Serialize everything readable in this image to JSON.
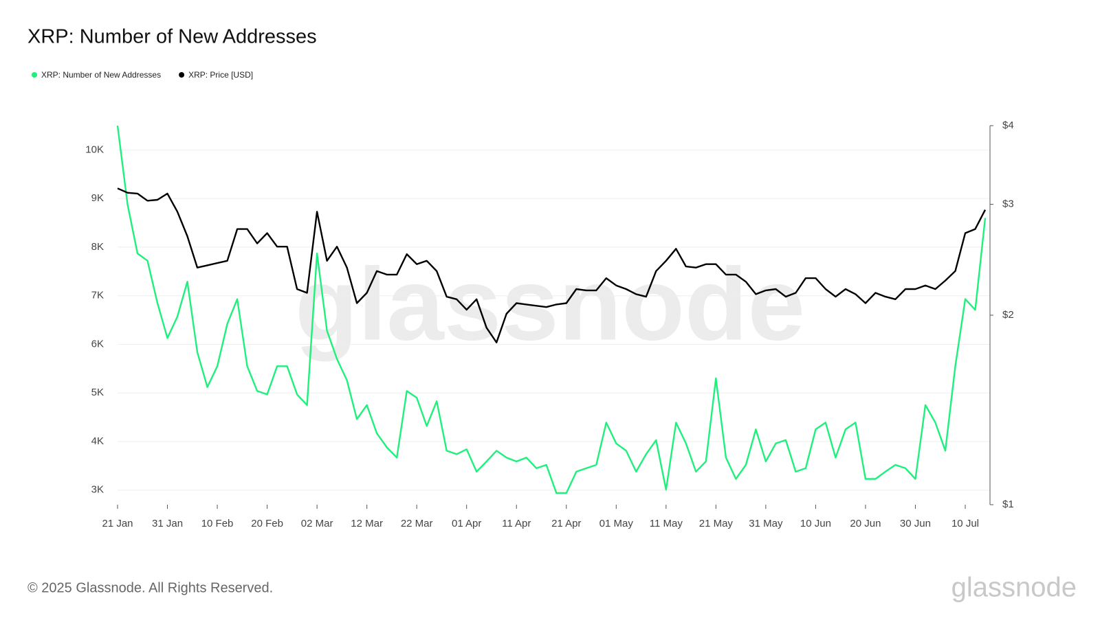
{
  "chart_data": {
    "type": "line",
    "title": "XRP: Number of New Addresses",
    "footer": "© 2025 Glassnode. All Rights Reserved.",
    "watermark": "glassnode",
    "categories": [
      "21 Jan",
      null,
      null,
      null,
      null,
      "31 Jan",
      null,
      null,
      null,
      null,
      "10 Feb",
      null,
      null,
      null,
      null,
      "20 Feb",
      null,
      null,
      null,
      null,
      "02 Mar",
      null,
      null,
      null,
      null,
      "12 Mar",
      null,
      null,
      null,
      null,
      "22 Mar",
      null,
      null,
      null,
      null,
      "01 Apr",
      null,
      null,
      null,
      null,
      "11 Apr",
      null,
      null,
      null,
      null,
      "21 Apr",
      null,
      null,
      null,
      null,
      "01 May",
      null,
      null,
      null,
      null,
      "11 May",
      null,
      null,
      null,
      null,
      "21 May",
      null,
      null,
      null,
      null,
      "31 May",
      null,
      null,
      null,
      null,
      "10 Jun",
      null,
      null,
      null,
      null,
      "20 Jun",
      null,
      null,
      null,
      null,
      "30 Jun",
      null,
      null,
      null,
      null,
      "10 Jul",
      null,
      null
    ],
    "series": [
      {
        "name": "XRP: Number of New Addresses",
        "color": "#1ef07c",
        "values": [
          10500,
          8880,
          7870,
          7720,
          6850,
          6130,
          6570,
          7290,
          5840,
          5120,
          5550,
          6420,
          6930,
          5550,
          5040,
          4970,
          5550,
          5550,
          4970,
          4750,
          7870,
          6280,
          5700,
          5260,
          4460,
          4750,
          4170,
          3880,
          3670,
          5040,
          4900,
          4320,
          4830,
          3810,
          3740,
          3840,
          3380,
          3590,
          3810,
          3670,
          3590,
          3670,
          3450,
          3520,
          2940,
          2940,
          3380,
          3450,
          3520,
          4390,
          3960,
          3810,
          3380,
          3740,
          4030,
          3010,
          4390,
          3960,
          3380,
          3590,
          5300,
          3670,
          3230,
          3520,
          4250,
          3590,
          3960,
          4030,
          3380,
          3450,
          4250,
          4390,
          3670,
          4250,
          4390,
          3230,
          3230,
          3380,
          3520,
          3450,
          3230,
          4750,
          4390,
          3810,
          5550,
          6930,
          6710,
          8600
        ]
      },
      {
        "name": "XRP: Price [USD]",
        "color": "#000000",
        "axis": "y2",
        "values": [
          3.18,
          3.13,
          3.12,
          3.04,
          3.05,
          3.12,
          2.92,
          2.67,
          2.38,
          2.4,
          2.42,
          2.44,
          2.74,
          2.74,
          2.6,
          2.7,
          2.57,
          2.57,
          2.2,
          2.17,
          2.92,
          2.44,
          2.57,
          2.38,
          2.09,
          2.17,
          2.35,
          2.32,
          2.32,
          2.5,
          2.41,
          2.44,
          2.35,
          2.14,
          2.12,
          2.04,
          2.12,
          1.91,
          1.81,
          2.01,
          2.09,
          2.08,
          2.07,
          2.06,
          2.08,
          2.09,
          2.2,
          2.19,
          2.19,
          2.29,
          2.23,
          2.2,
          2.16,
          2.14,
          2.35,
          2.44,
          2.55,
          2.39,
          2.38,
          2.41,
          2.41,
          2.32,
          2.32,
          2.26,
          2.16,
          2.19,
          2.2,
          2.14,
          2.17,
          2.29,
          2.29,
          2.2,
          2.14,
          2.2,
          2.16,
          2.09,
          2.17,
          2.14,
          2.12,
          2.2,
          2.2,
          2.23,
          2.2,
          2.27,
          2.35,
          2.7,
          2.74,
          2.94
        ]
      }
    ],
    "ylim": [
      2700,
      10500
    ],
    "yticks": [
      {
        "value": 3000,
        "label": "3K"
      },
      {
        "value": 4000,
        "label": "4K"
      },
      {
        "value": 5000,
        "label": "5K"
      },
      {
        "value": 6000,
        "label": "6K"
      },
      {
        "value": 7000,
        "label": "7K"
      },
      {
        "value": 8000,
        "label": "8K"
      },
      {
        "value": 9000,
        "label": "9K"
      },
      {
        "value": 10000,
        "label": "10K"
      }
    ],
    "y2lim": [
      1,
      4
    ],
    "y2scale": "log",
    "y2ticks": [
      {
        "value": 1,
        "label": "$1"
      },
      {
        "value": 2,
        "label": "$2"
      },
      {
        "value": 3,
        "label": "$3"
      },
      {
        "value": 4,
        "label": "$4"
      }
    ],
    "grid": true
  }
}
